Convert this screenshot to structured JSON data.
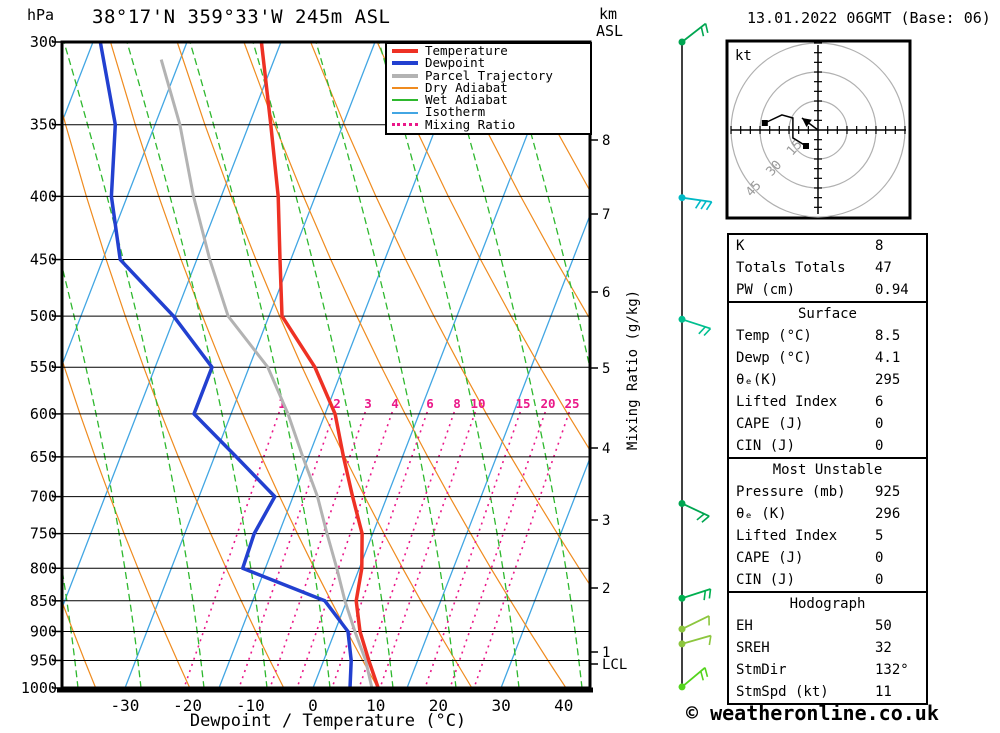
{
  "header": {
    "pressure_unit": "hPa",
    "title": "38°17'N 359°33'W 245m ASL",
    "km_label": "km",
    "asl_label": "ASL",
    "date_title": "13.01.2022 06GMT (Base: 06)"
  },
  "axes": {
    "pressure_ticks": [
      300,
      350,
      400,
      450,
      500,
      550,
      600,
      650,
      700,
      750,
      800,
      850,
      900,
      950,
      1000
    ],
    "temp_ticks": [
      -30,
      -20,
      -10,
      0,
      10,
      20,
      30,
      40
    ],
    "x_label": "Dewpoint / Temperature (°C)",
    "km_ticks": [
      8,
      7,
      6,
      5,
      4,
      3,
      2,
      1
    ],
    "lcl_label": "LCL",
    "mixing_label": "Mixing Ratio (g/kg)"
  },
  "colors": {
    "temperature": "#ee3124",
    "dewpoint": "#2240d0",
    "parcel": "#b3b3b3",
    "dry_adiabat": "#ef8b1f",
    "wet_adiabat": "#2eb82e",
    "isotherm": "#42a6e3",
    "mixing_ratio": "#ea1889",
    "grid": "#000000"
  },
  "legend": {
    "items": [
      {
        "label": "Temperature",
        "color": "#ee3124",
        "style": "thick"
      },
      {
        "label": "Dewpoint",
        "color": "#2240d0",
        "style": "thick"
      },
      {
        "label": "Parcel Trajectory",
        "color": "#b3b3b3",
        "style": "thick"
      },
      {
        "label": "Dry Adiabat",
        "color": "#ef8b1f",
        "style": "thin"
      },
      {
        "label": "Wet Adiabat",
        "color": "#2eb82e",
        "style": "thin"
      },
      {
        "label": "Isotherm",
        "color": "#42a6e3",
        "style": "thin"
      },
      {
        "label": "Mixing Ratio",
        "color": "#ea1889",
        "style": "dotted"
      }
    ]
  },
  "hodograph": {
    "unit_label": "kt",
    "rings": [
      15,
      30,
      45
    ]
  },
  "tables": {
    "indices": {
      "rows": [
        [
          "K",
          "8"
        ],
        [
          "Totals Totals",
          "47"
        ],
        [
          "PW (cm)",
          "0.94"
        ]
      ]
    },
    "surface": {
      "title": "Surface",
      "rows": [
        [
          "Temp (°C)",
          "8.5"
        ],
        [
          "Dewp (°C)",
          "4.1"
        ],
        [
          "θₑ(K)",
          "295"
        ],
        [
          "Lifted Index",
          "6"
        ],
        [
          "CAPE (J)",
          "0"
        ],
        [
          "CIN (J)",
          "0"
        ]
      ]
    },
    "most_unstable": {
      "title": "Most Unstable",
      "rows": [
        [
          "Pressure (mb)",
          "925"
        ],
        [
          "θₑ (K)",
          "296"
        ],
        [
          "Lifted Index",
          "5"
        ],
        [
          "CAPE (J)",
          "0"
        ],
        [
          "CIN (J)",
          "0"
        ]
      ]
    },
    "hodograph": {
      "title": "Hodograph",
      "rows": [
        [
          "EH",
          "50"
        ],
        [
          "SREH",
          "32"
        ],
        [
          "StmDir",
          "132°"
        ],
        [
          "StmSpd (kt)",
          "11"
        ]
      ]
    }
  },
  "copyright": "© weatheronline.co.uk",
  "chart_data": {
    "type": "skew_t_log_p_sounding",
    "pressure_range_hpa": [
      300,
      1000
    ],
    "temp_axis_range_c": [
      -40,
      40
    ],
    "series": [
      {
        "name": "Temperature",
        "color": "#ee3124",
        "pressure_hpa": [
          300,
          350,
          400,
          450,
          500,
          550,
          600,
          650,
          700,
          750,
          800,
          850,
          900,
          950,
          1000
        ],
        "temp_c": [
          -48.1,
          -41.5,
          -35.9,
          -31.7,
          -27.9,
          -19.5,
          -13.4,
          -9.4,
          -5.5,
          -1.7,
          0.4,
          1.5,
          4.0,
          7.2,
          10.4
        ]
      },
      {
        "name": "Dewpoint",
        "color": "#2240d0",
        "pressure_hpa": [
          300,
          350,
          400,
          450,
          500,
          550,
          600,
          650,
          700,
          750,
          800,
          850,
          900,
          950,
          1000
        ],
        "temp_c": [
          -73.8,
          -66.3,
          -62.5,
          -57.2,
          -45.2,
          -35.9,
          -35.9,
          -26.5,
          -17.9,
          -18.9,
          -18.6,
          -3.5,
          2.1,
          4.4,
          5.9
        ]
      },
      {
        "name": "Parcel Trajectory",
        "color": "#b3b3b3",
        "pressure_hpa": [
          310,
          350,
          400,
          450,
          500,
          550,
          600,
          650,
          700,
          750,
          800,
          850,
          900,
          950,
          1000
        ],
        "temp_c": [
          -63.0,
          -56.0,
          -49.4,
          -42.9,
          -36.5,
          -27.0,
          -20.9,
          -15.9,
          -11.1,
          -7.3,
          -3.6,
          -0.3,
          3.2,
          6.7,
          9.4
        ]
      }
    ],
    "mixing_ratio_lines": [
      {
        "value": 1,
        "x_at_600": 282
      },
      {
        "value": 2,
        "x_at_600": 337
      },
      {
        "value": 3,
        "x_at_600": 368
      },
      {
        "value": 4,
        "x_at_600": 395
      },
      {
        "value": 6,
        "x_at_600": 430
      },
      {
        "value": 8,
        "x_at_600": 457
      },
      {
        "value": 10,
        "x_at_600": 478
      },
      {
        "value": 15,
        "x_at_600": 523
      },
      {
        "value": 20,
        "x_at_600": 548
      },
      {
        "value": 25,
        "x_at_600": 572
      }
    ],
    "winds": [
      {
        "pressure_hpa": 300,
        "color": "#00a651",
        "angle": -38,
        "ticks": 2
      },
      {
        "pressure_hpa": 401,
        "color": "#00b9c6",
        "angle": 8,
        "ticks": 3
      },
      {
        "pressure_hpa": 503,
        "color": "#00bf8f",
        "angle": 18,
        "ticks": 2
      },
      {
        "pressure_hpa": 709,
        "color": "#00a651",
        "angle": 25,
        "ticks": 2
      },
      {
        "pressure_hpa": 846,
        "color": "#00b050",
        "angle": -18,
        "ticks": 2
      },
      {
        "pressure_hpa": 896,
        "color": "#8cc63e",
        "angle": -26,
        "ticks": 1
      },
      {
        "pressure_hpa": 921,
        "color": "#8cc63e",
        "angle": -16,
        "ticks": 1
      },
      {
        "pressure_hpa": 998,
        "color": "#54d41d",
        "angle": -40,
        "ticks": 2
      }
    ],
    "hodograph_trace_kt": [
      [
        -27.5,
        3.6
      ],
      [
        -18.7,
        7.8
      ],
      [
        -13,
        6.2
      ],
      [
        -13,
        -4.1
      ],
      [
        -6.2,
        -8.3
      ]
    ],
    "hodograph_arrow_kt": [
      [
        0,
        0
      ],
      [
        -8.3,
        6.2
      ]
    ]
  }
}
